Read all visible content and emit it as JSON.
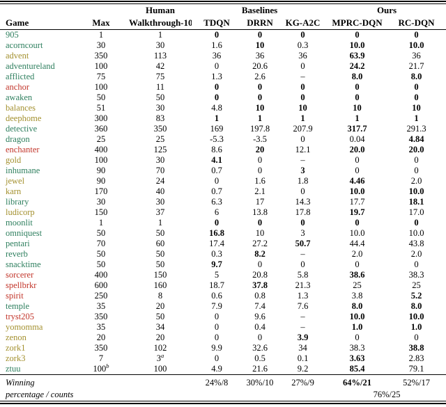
{
  "colors": {
    "green": "#2e7f5e",
    "olive": "#a3902e",
    "red": "#c2352a",
    "text": "#000000"
  },
  "table": {
    "header": {
      "game": "Game",
      "max": "Max",
      "human_line1": "Human",
      "human_line2": "Walkthrough-100",
      "baselines_group": "Baselines",
      "ours_group": "Ours",
      "tdqn": "TDQN",
      "drrn": "DRRN",
      "kga2c": "KG-A2C",
      "mprc": "MPRC-DQN",
      "rc": "RC-DQN"
    },
    "rows": [
      {
        "game": "905",
        "color": "green",
        "values": [
          "1",
          "1",
          "0",
          "0",
          "0",
          "0",
          "0"
        ],
        "bold": [
          2,
          3,
          4,
          5,
          6
        ]
      },
      {
        "game": "acorncourt",
        "color": "green",
        "values": [
          "30",
          "30",
          "1.6",
          "10",
          "0.3",
          "10.0",
          "10.0"
        ],
        "bold": [
          3,
          5,
          6
        ]
      },
      {
        "game": "advent",
        "color": "olive",
        "values": [
          "350",
          "113",
          "36",
          "36",
          "36",
          "63.9",
          "36"
        ],
        "bold": [
          5
        ]
      },
      {
        "game": "adventureland",
        "color": "green",
        "values": [
          "100",
          "42",
          "0",
          "20.6",
          "0",
          "24.2",
          "21.7"
        ],
        "bold": [
          5
        ]
      },
      {
        "game": "afflicted",
        "color": "green",
        "values": [
          "75",
          "75",
          "1.3",
          "2.6",
          "–",
          "8.0",
          "8.0"
        ],
        "bold": [
          5,
          6
        ]
      },
      {
        "game": "anchor",
        "color": "red",
        "values": [
          "100",
          "11",
          "0",
          "0",
          "0",
          "0",
          "0"
        ],
        "bold": [
          2,
          3,
          4,
          5,
          6
        ]
      },
      {
        "game": "awaken",
        "color": "green",
        "values": [
          "50",
          "50",
          "0",
          "0",
          "0",
          "0",
          "0"
        ],
        "bold": [
          2,
          3,
          4,
          5,
          6
        ]
      },
      {
        "game": "balances",
        "color": "olive",
        "values": [
          "51",
          "30",
          "4.8",
          "10",
          "10",
          "10",
          "10"
        ],
        "bold": [
          3,
          4,
          5,
          6
        ]
      },
      {
        "game": "deephome",
        "color": "olive",
        "values": [
          "300",
          "83",
          "1",
          "1",
          "1",
          "1",
          "1"
        ],
        "bold": [
          2,
          3,
          4,
          5,
          6
        ]
      },
      {
        "game": "detective",
        "color": "green",
        "values": [
          "360",
          "350",
          "169",
          "197.8",
          "207.9",
          "317.7",
          "291.3"
        ],
        "bold": [
          5
        ]
      },
      {
        "game": "dragon",
        "color": "green",
        "values": [
          "25",
          "25",
          "-5.3",
          "-3.5",
          "0",
          "0.04",
          "4.84"
        ],
        "bold": [
          6
        ]
      },
      {
        "game": "enchanter",
        "color": "red",
        "values": [
          "400",
          "125",
          "8.6",
          "20",
          "12.1",
          "20.0",
          "20.0"
        ],
        "bold": [
          3,
          5,
          6
        ]
      },
      {
        "game": "gold",
        "color": "olive",
        "values": [
          "100",
          "30",
          "4.1",
          "0",
          "–",
          "0",
          "0"
        ],
        "bold": [
          2
        ]
      },
      {
        "game": "inhumane",
        "color": "green",
        "values": [
          "90",
          "70",
          "0.7",
          "0",
          "3",
          "0",
          "0"
        ],
        "bold": [
          4
        ]
      },
      {
        "game": "jewel",
        "color": "olive",
        "values": [
          "90",
          "24",
          "0",
          "1.6",
          "1.8",
          "4.46",
          "2.0"
        ],
        "bold": [
          5
        ]
      },
      {
        "game": "karn",
        "color": "olive",
        "values": [
          "170",
          "40",
          "0.7",
          "2.1",
          "0",
          "10.0",
          "10.0"
        ],
        "bold": [
          5,
          6
        ]
      },
      {
        "game": "library",
        "color": "green",
        "values": [
          "30",
          "30",
          "6.3",
          "17",
          "14.3",
          "17.7",
          "18.1"
        ],
        "bold": [
          6
        ]
      },
      {
        "game": "ludicorp",
        "color": "olive",
        "values": [
          "150",
          "37",
          "6",
          "13.8",
          "17.8",
          "19.7",
          "17.0"
        ],
        "bold": [
          5
        ]
      },
      {
        "game": "moonlit",
        "color": "green",
        "values": [
          "1",
          "1",
          "0",
          "0",
          "0",
          "0",
          "0"
        ],
        "bold": [
          2,
          3,
          4,
          5,
          6
        ]
      },
      {
        "game": "omniquest",
        "color": "green",
        "values": [
          "50",
          "50",
          "16.8",
          "10",
          "3",
          "10.0",
          "10.0"
        ],
        "bold": [
          2
        ]
      },
      {
        "game": "pentari",
        "color": "green",
        "values": [
          "70",
          "60",
          "17.4",
          "27.2",
          "50.7",
          "44.4",
          "43.8"
        ],
        "bold": [
          4
        ]
      },
      {
        "game": "reverb",
        "color": "green",
        "values": [
          "50",
          "50",
          "0.3",
          "8.2",
          "–",
          "2.0",
          "2.0"
        ],
        "bold": [
          3
        ]
      },
      {
        "game": "snacktime",
        "color": "green",
        "values": [
          "50",
          "50",
          "9.7",
          "0",
          "0",
          "0",
          "0"
        ],
        "bold": [
          2
        ]
      },
      {
        "game": "sorcerer",
        "color": "red",
        "values": [
          "400",
          "150",
          "5",
          "20.8",
          "5.8",
          "38.6",
          "38.3"
        ],
        "bold": [
          5
        ]
      },
      {
        "game": "spellbrkr",
        "color": "red",
        "values": [
          "600",
          "160",
          "18.7",
          "37.8",
          "21.3",
          "25",
          "25"
        ],
        "bold": [
          3
        ]
      },
      {
        "game": "spirit",
        "color": "red",
        "values": [
          "250",
          "8",
          "0.6",
          "0.8",
          "1.3",
          "3.8",
          "5.2"
        ],
        "bold": [
          6
        ]
      },
      {
        "game": "temple",
        "color": "green",
        "values": [
          "35",
          "20",
          "7.9",
          "7.4",
          "7.6",
          "8.0",
          "8.0"
        ],
        "bold": [
          5,
          6
        ]
      },
      {
        "game": "tryst205",
        "color": "red",
        "values": [
          "350",
          "50",
          "0",
          "9.6",
          "–",
          "10.0",
          "10.0"
        ],
        "bold": [
          5,
          6
        ]
      },
      {
        "game": "yomomma",
        "color": "olive",
        "values": [
          "35",
          "34",
          "0",
          "0.4",
          "–",
          "1.0",
          "1.0"
        ],
        "bold": [
          5,
          6
        ]
      },
      {
        "game": "zenon",
        "color": "olive",
        "values": [
          "20",
          "20",
          "0",
          "0",
          "3.9",
          "0",
          "0"
        ],
        "bold": [
          4
        ]
      },
      {
        "game": "zork1",
        "color": "olive",
        "values": [
          "350",
          "102",
          "9.9",
          "32.6",
          "34",
          "38.3",
          "38.8"
        ],
        "bold": [
          6
        ]
      },
      {
        "game": "zork3",
        "color": "olive",
        "values": [
          "7",
          "3",
          "0",
          "0.5",
          "0.1",
          "3.63",
          "2.83"
        ],
        "bold": [
          5
        ],
        "sup": {
          "1": "a"
        }
      },
      {
        "game": "ztuu",
        "color": "green",
        "values": [
          "100",
          "100",
          "4.9",
          "21.6",
          "9.2",
          "85.4",
          "79.1"
        ],
        "bold": [
          5
        ],
        "sup": {
          "0": "b"
        }
      }
    ],
    "footer": {
      "label_line1": "Winning",
      "label_line2": "percentage / counts",
      "tdqn": "24%/8",
      "drrn": "30%/10",
      "kga2c": "27%/9",
      "mprc": "64%/21",
      "rc": "52%/17",
      "ours_combined": "76%/25"
    }
  }
}
